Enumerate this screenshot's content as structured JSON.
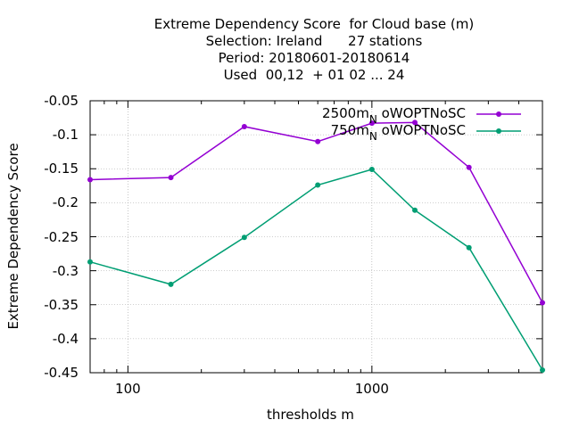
{
  "chart_data": {
    "type": "line",
    "title_lines": [
      "Extreme Dependency Score  for Cloud base (m)",
      "Selection: Ireland      27 stations",
      "Period: 20180601-20180614",
      "Used  00,12  + 01 02 ... 24"
    ],
    "xlabel": "thresholds m",
    "ylabel": "Extreme Dependency Score",
    "x_scale": "log",
    "xlim": [
      70,
      5000
    ],
    "ylim": [
      -0.45,
      -0.05
    ],
    "x_tick_values": [
      100,
      1000
    ],
    "x_tick_labels": [
      "100",
      "1000"
    ],
    "y_tick_values": [
      -0.05,
      -0.1,
      -0.15,
      -0.2,
      -0.25,
      -0.3,
      -0.35,
      -0.4,
      -0.45
    ],
    "y_tick_labels": [
      "-0.05",
      "-0.1",
      "-0.15",
      "-0.2",
      "-0.25",
      "-0.3",
      "-0.35",
      "-0.4",
      "-0.45"
    ],
    "grid": true,
    "legend_position": "top-right",
    "series": [
      {
        "name": "2500m_N oWOPTNoSC",
        "label_main": "2500m",
        "label_sub": "N",
        "label_rest": "oWOPTNoSC",
        "color": "#9400d3",
        "x": [
          70,
          150,
          300,
          600,
          1000,
          1500,
          2500,
          5000
        ],
        "y": [
          -0.166,
          -0.163,
          -0.088,
          -0.11,
          -0.083,
          -0.082,
          -0.148,
          -0.347
        ]
      },
      {
        "name": "750m_N oWOPTNoSC",
        "label_main": "750m",
        "label_sub": "N",
        "label_rest": "oWOPTNoSC",
        "color": "#009e73",
        "x": [
          70,
          150,
          300,
          600,
          1000,
          1500,
          2500,
          5000
        ],
        "y": [
          -0.287,
          -0.32,
          -0.251,
          -0.174,
          -0.151,
          -0.211,
          -0.266,
          -0.446
        ]
      }
    ]
  }
}
